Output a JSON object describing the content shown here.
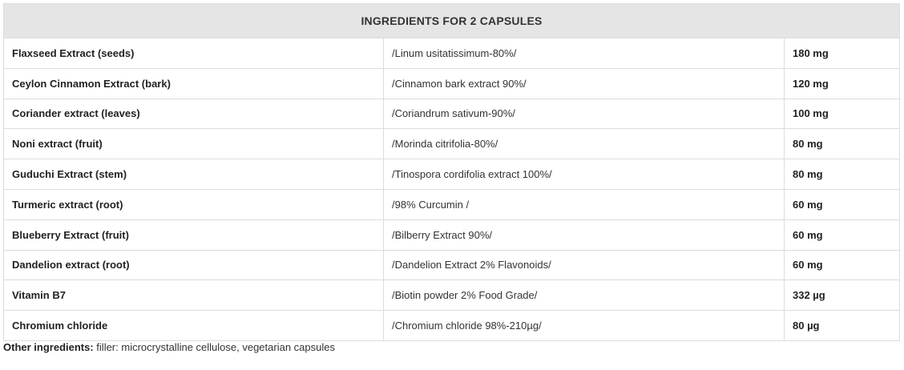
{
  "table": {
    "header": "INGREDIENTS FOR 2 CAPSULES",
    "rows": [
      {
        "name": "Flaxseed Extract (seeds)",
        "desc": "/Linum usitatissimum-80%/",
        "amount": "180 mg"
      },
      {
        "name": "Ceylon Cinnamon Extract (bark)",
        "desc": "/Cinnamon bark extract 90%/",
        "amount": "120 mg"
      },
      {
        "name": "Coriander extract (leaves)",
        "desc": "/Coriandrum sativum-90%/",
        "amount": "100 mg"
      },
      {
        "name": "Noni extract (fruit)",
        "desc": "/Morinda citrifolia-80%/",
        "amount": "80 mg"
      },
      {
        "name": "Guduchi Extract (stem)",
        "desc": "/Tinospora cordifolia extract 100%/",
        "amount": "80 mg"
      },
      {
        "name": "Turmeric extract (root)",
        "desc": "/98% Curcumin /",
        "amount": "60 mg"
      },
      {
        "name": "Blueberry Extract (fruit)",
        "desc": "/Bilberry Extract 90%/",
        "amount": "60 mg"
      },
      {
        "name": "Dandelion extract (root)",
        "desc": "/Dandelion Extract 2% Flavonoids/",
        "amount": "60 mg"
      },
      {
        "name": "Vitamin B7",
        "desc": "/Biotin powder 2% Food Grade/",
        "amount": "332 µg"
      },
      {
        "name": "Chromium chloride",
        "desc": "/Chromium chloride 98%-210µg/",
        "amount": "80 µg"
      }
    ]
  },
  "other": {
    "label": "Other ingredients:",
    "text": " filler: microcrystalline cellulose, vegetarian capsules"
  }
}
